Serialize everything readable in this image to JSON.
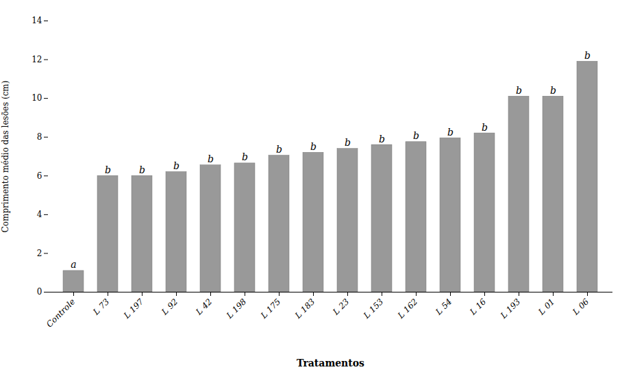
{
  "chart_data": {
    "type": "bar",
    "categories": [
      "Controle",
      "L 73",
      "L 197",
      "L 92",
      "L 42",
      "L 198",
      "L 175",
      "L 183",
      "L 23",
      "L 153",
      "L 162",
      "L 54",
      "L 16",
      "L 193",
      "L 01",
      "L 06"
    ],
    "values": [
      1.1,
      6.0,
      6.0,
      6.2,
      6.55,
      6.65,
      7.05,
      7.2,
      7.4,
      7.6,
      7.75,
      7.95,
      8.2,
      10.1,
      10.1,
      11.9
    ],
    "annotations": [
      "a",
      "b",
      "b",
      "b",
      "b",
      "b",
      "b",
      "b",
      "b",
      "b",
      "b",
      "b",
      "b",
      "b",
      "b",
      "b"
    ],
    "color": "#999999",
    "xlabel": "Tratamentos",
    "ylabel": "Comprimento médio das lesões (cm)",
    "ylim": [
      0,
      14
    ],
    "yticks": [
      0,
      2,
      4,
      6,
      8,
      10,
      12,
      14
    ],
    "grid": false
  }
}
